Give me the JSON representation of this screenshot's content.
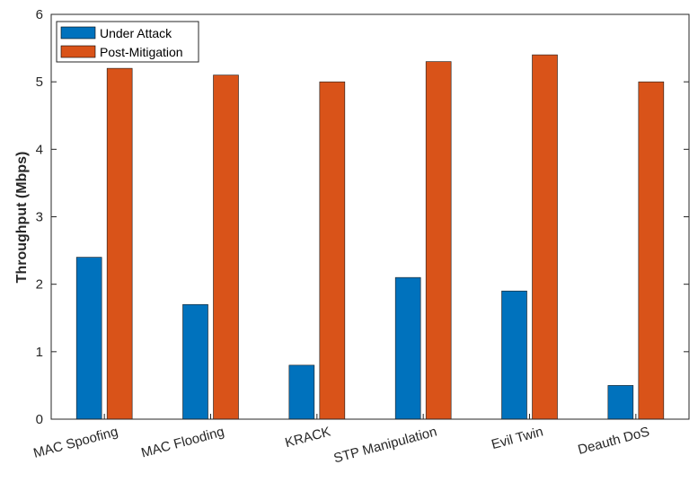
{
  "chart_data": {
    "type": "bar",
    "title": "",
    "xlabel": "",
    "ylabel": "Throughput (Mbps)",
    "ylim": [
      0,
      6
    ],
    "yticks": [
      0,
      1,
      2,
      3,
      4,
      5,
      6
    ],
    "grid": false,
    "legend_position": "top-left",
    "categories": [
      "MAC Spoofing",
      "MAC Flooding",
      "KRACK",
      "STP Manipulation",
      "Evil Twin",
      "Deauth DoS"
    ],
    "series": [
      {
        "name": "Under Attack",
        "color": "#0072BD",
        "values": [
          2.4,
          1.7,
          0.8,
          2.1,
          1.9,
          0.5
        ]
      },
      {
        "name": "Post-Mitigation",
        "color": "#D95319",
        "values": [
          5.2,
          5.1,
          5.0,
          5.3,
          5.4,
          5.0
        ]
      }
    ]
  }
}
